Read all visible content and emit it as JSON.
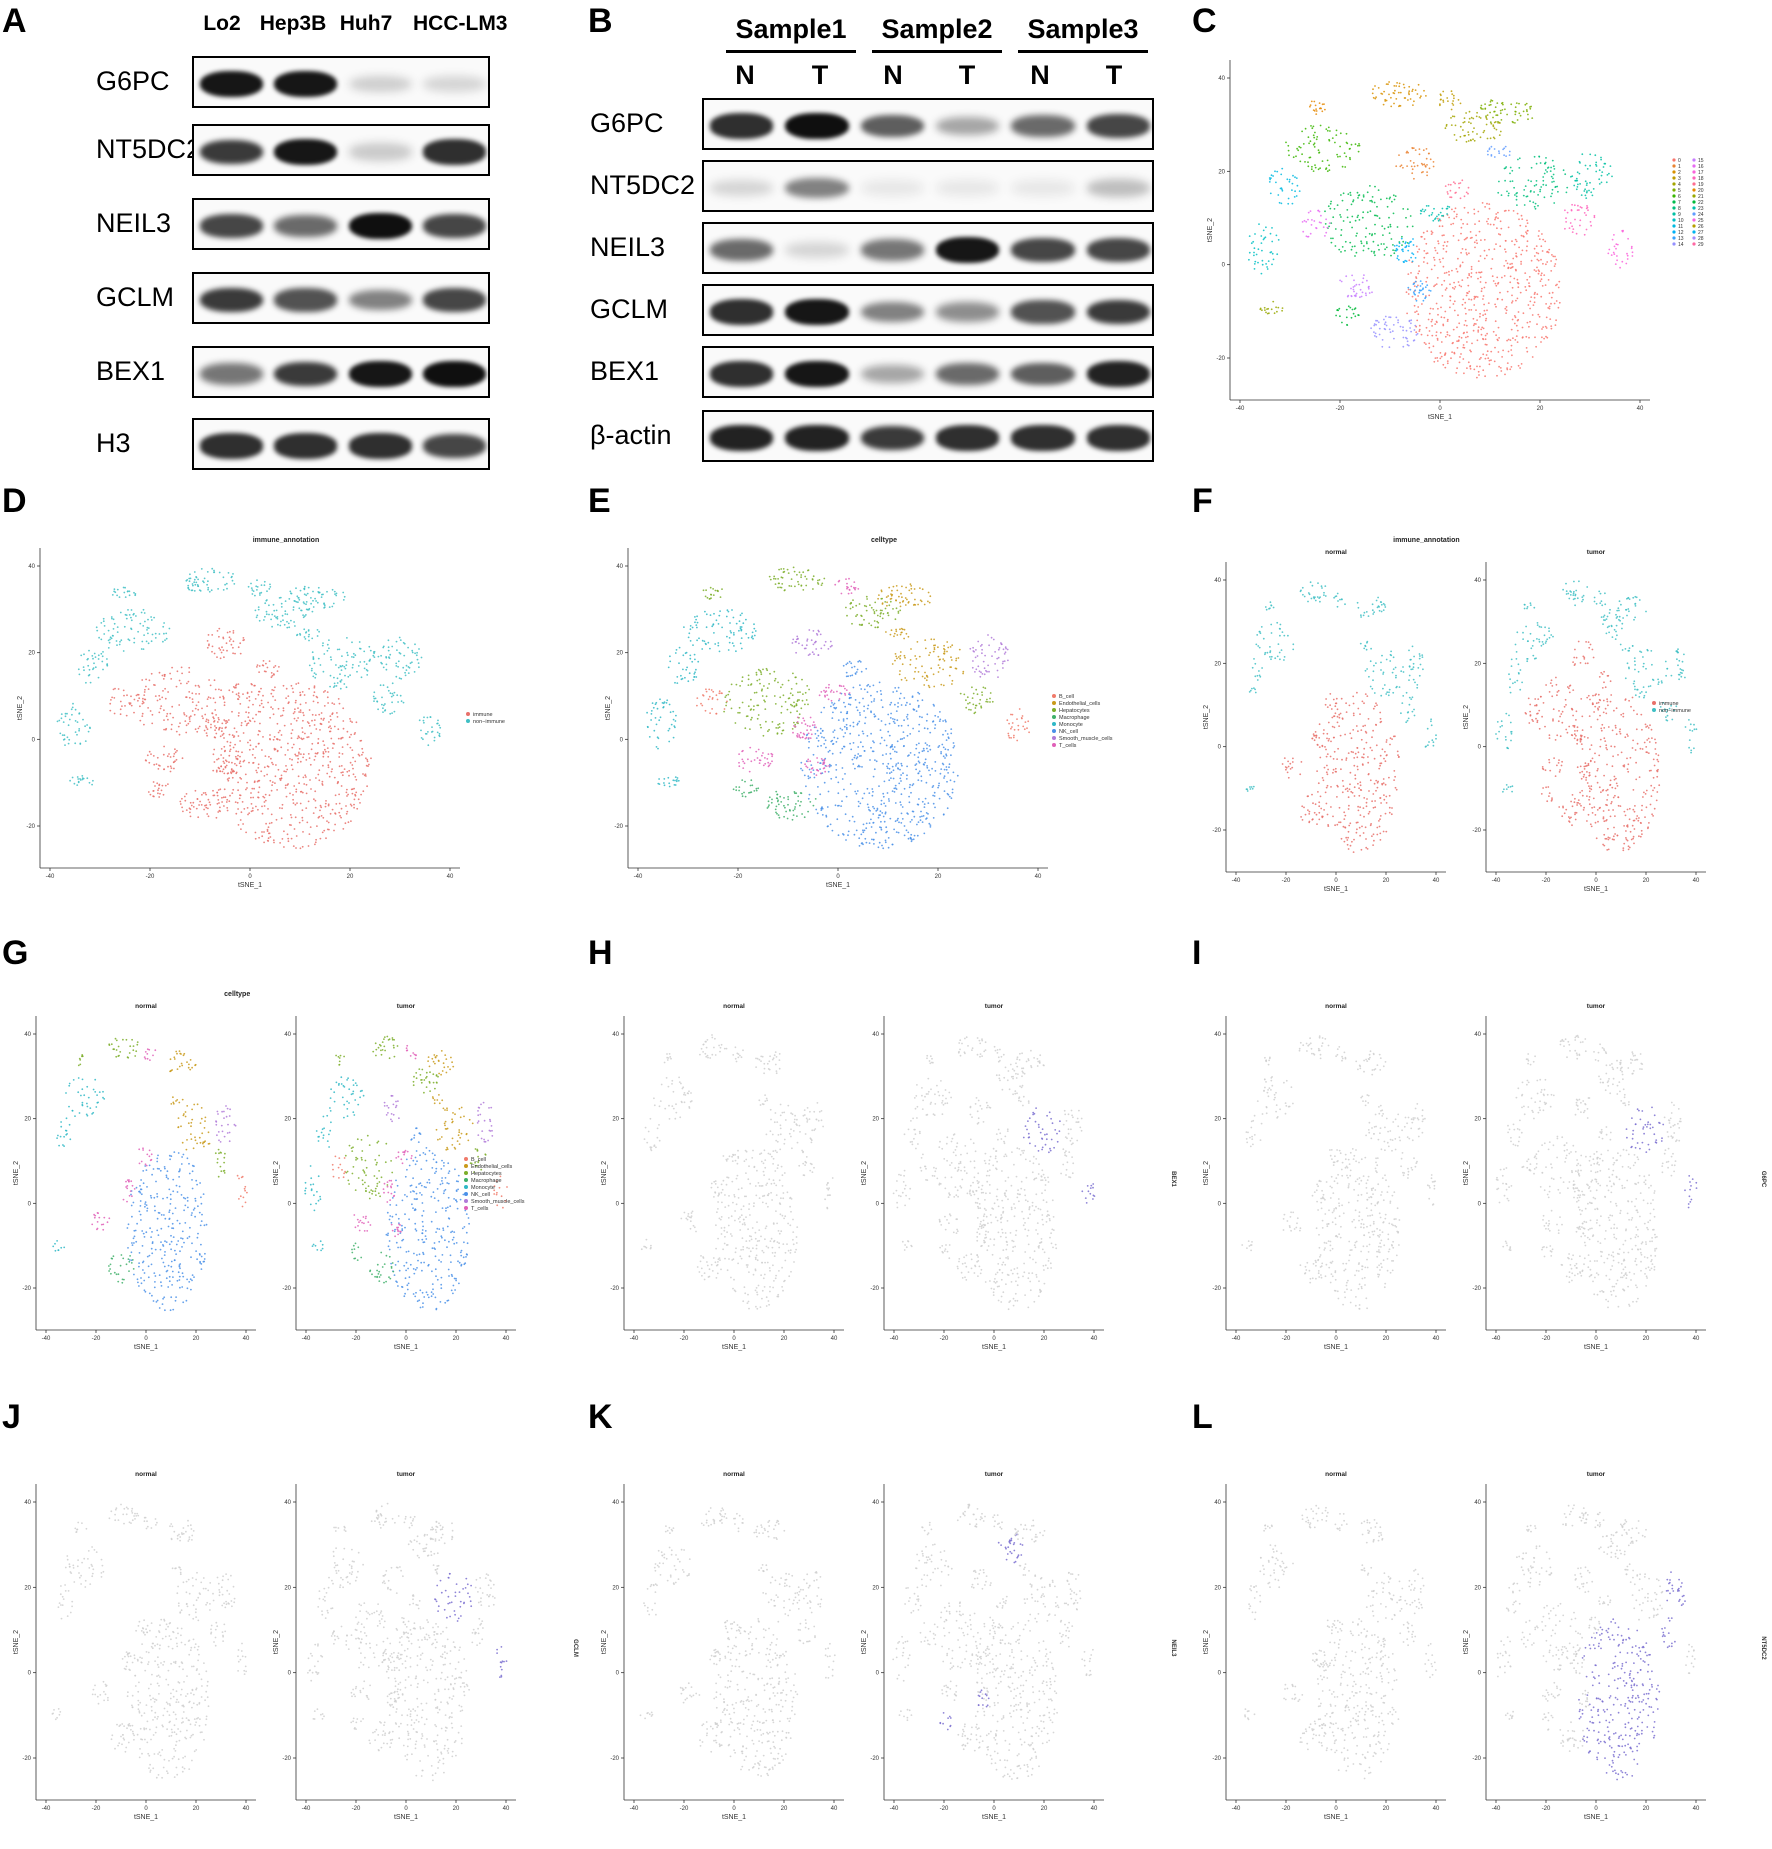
{
  "panels": {
    "A": {
      "label": "A",
      "lanes": [
        "Lo2",
        "Hep3B",
        "Huh7",
        "HCC-LM3"
      ],
      "genes": [
        "G6PC",
        "NT5DC2",
        "NEIL3",
        "GCLM",
        "BEX1",
        "H3"
      ],
      "intensity": [
        [
          0.95,
          0.95,
          0.18,
          0.15
        ],
        [
          0.8,
          0.95,
          0.2,
          0.85
        ],
        [
          0.75,
          0.6,
          0.98,
          0.75
        ],
        [
          0.8,
          0.7,
          0.5,
          0.75
        ],
        [
          0.55,
          0.8,
          0.95,
          0.98
        ],
        [
          0.85,
          0.85,
          0.85,
          0.75
        ]
      ]
    },
    "B": {
      "label": "B",
      "samples": [
        "Sample1",
        "Sample2",
        "Sample3"
      ],
      "lanes": [
        "N",
        "T",
        "N",
        "T",
        "N",
        "T"
      ],
      "genes": [
        "G6PC",
        "NT5DC2",
        "NEIL3",
        "GCLM",
        "BEX1",
        "β-actin"
      ],
      "intensity": [
        [
          0.85,
          0.98,
          0.65,
          0.35,
          0.6,
          0.75
        ],
        [
          0.15,
          0.5,
          0.08,
          0.08,
          0.08,
          0.25
        ],
        [
          0.6,
          0.15,
          0.55,
          0.95,
          0.75,
          0.75
        ],
        [
          0.85,
          0.95,
          0.5,
          0.45,
          0.7,
          0.8
        ],
        [
          0.85,
          0.95,
          0.35,
          0.6,
          0.65,
          0.9
        ],
        [
          0.9,
          0.9,
          0.8,
          0.85,
          0.85,
          0.85
        ]
      ]
    },
    "C": {
      "label": "C",
      "legend": [
        "0",
        "1",
        "2",
        "3",
        "4",
        "5",
        "6",
        "7",
        "8",
        "9",
        "10",
        "11",
        "12",
        "13",
        "14",
        "15",
        "16",
        "17",
        "18",
        "19",
        "20",
        "21",
        "22",
        "23",
        "24",
        "25",
        "26",
        "27",
        "28",
        "29"
      ]
    },
    "D": {
      "label": "D",
      "title": "immune_annotation",
      "legend": [
        "immune",
        "non−immune"
      ]
    },
    "E": {
      "label": "E",
      "title": "celltype",
      "legend": [
        "B_cell",
        "Endothelial_cells",
        "Hepatocytes",
        "Macrophage",
        "Monocyte",
        "NK_cell",
        "Smooth_muscle_cells",
        "T_cells"
      ]
    },
    "F": {
      "label": "F",
      "title": "immune_annotation",
      "subtitles": [
        "normal",
        "tumor"
      ],
      "legend": [
        "immune",
        "non−immune"
      ]
    },
    "G": {
      "label": "G",
      "title": "celltype",
      "subtitles": [
        "normal",
        "tumor"
      ],
      "legend": [
        "B_cell",
        "Endothelial_cells",
        "Hepatocytes",
        "Macrophage",
        "Monocyte",
        "NK_cell",
        "Smooth_muscle_cells",
        "T_cells"
      ]
    },
    "H": {
      "label": "H",
      "subtitles": [
        "normal",
        "tumor"
      ],
      "gene": "BEX1"
    },
    "I": {
      "label": "I",
      "subtitles": [
        "normal",
        "tumor"
      ],
      "gene": "G6PC"
    },
    "J": {
      "label": "J",
      "subtitles": [
        "normal",
        "tumor"
      ],
      "gene": "GCLM"
    },
    "K": {
      "label": "K",
      "subtitles": [
        "normal",
        "tumor"
      ],
      "gene": "NEIL3"
    },
    "L": {
      "label": "L",
      "subtitles": [
        "normal",
        "tumor"
      ],
      "gene": "NT5DC2"
    }
  },
  "axis": {
    "xlabel": "tSNE_1",
    "ylabel": "tSNE_2",
    "xticks": [
      "-40",
      "-20",
      "0",
      "20",
      "40"
    ],
    "yticks": [
      "40",
      "20",
      "0",
      "-20"
    ]
  },
  "colors": {
    "immune": "#e8706a",
    "non_immune": "#3fbfc4",
    "celltypes": [
      "#f07a6a",
      "#c99a1a",
      "#7cae2a",
      "#3fb06a",
      "#2fb8c6",
      "#4a90e8",
      "#b07ad8",
      "#e060b8"
    ],
    "clusters": [
      "#f8766d",
      "#ea8331",
      "#d89000",
      "#c09b00",
      "#a3a500",
      "#7cae00",
      "#39b600",
      "#00bb4e",
      "#00bf7d",
      "#00c1a3",
      "#00bfc4",
      "#00bae0",
      "#00b0f6",
      "#35a2ff",
      "#9590ff",
      "#c77cff",
      "#e76bf3",
      "#fa62db",
      "#ff62bc",
      "#ff6c91",
      "#e58700",
      "#99a800",
      "#00ba38",
      "#00c0af",
      "#619cff",
      "#f564e3",
      "#b79f00",
      "#00b4f0",
      "#a58aff",
      "#ff67a4"
    ],
    "grey": "#cfcfcf",
    "expr": "#7a6ed0"
  }
}
